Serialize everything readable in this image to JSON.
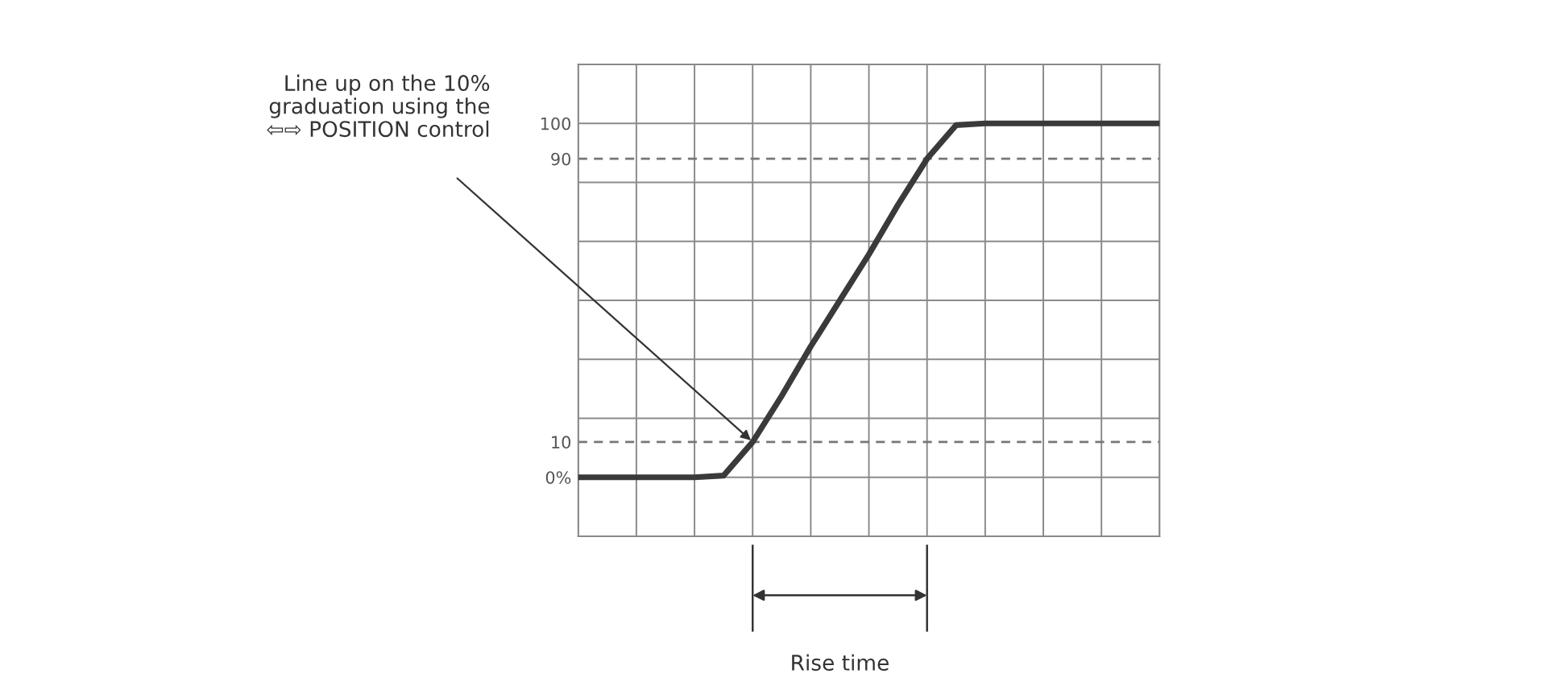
{
  "chart_data": {
    "type": "line",
    "categories": [
      null,
      null,
      null,
      null,
      null,
      null,
      null,
      null,
      null,
      null,
      null,
      null,
      null,
      null,
      null,
      null,
      null,
      null,
      null,
      null,
      null
    ],
    "series": [
      {
        "color": "#3a3a3a",
        "values": [
          0,
          0,
          0,
          0,
          0,
          0.5,
          10,
          23,
          37,
          50,
          63,
          77,
          90,
          99.5,
          100,
          100,
          100,
          100,
          100,
          100,
          100
        ]
      }
    ],
    "ylim": [
      -16.67,
      116.67
    ],
    "yticks": [
      {
        "value": -16.67,
        "label": null
      },
      {
        "value": 0,
        "label": "0%"
      },
      10,
      {
        "value": 16.67,
        "label": null
      },
      {
        "value": 33.33,
        "label": null
      },
      {
        "value": 50,
        "label": null
      },
      {
        "value": 66.67,
        "label": null
      },
      {
        "value": 83.33,
        "label": null
      },
      90,
      {
        "value": 100,
        "label": "100"
      },
      {
        "value": 116.67,
        "label": null
      }
    ],
    "grid": true,
    "tick_labels": "y",
    "annotations": [
      "Line up on the 10%\ngraduation using the\n⇦⇨ POSITION control",
      "Rise time"
    ]
  }
}
